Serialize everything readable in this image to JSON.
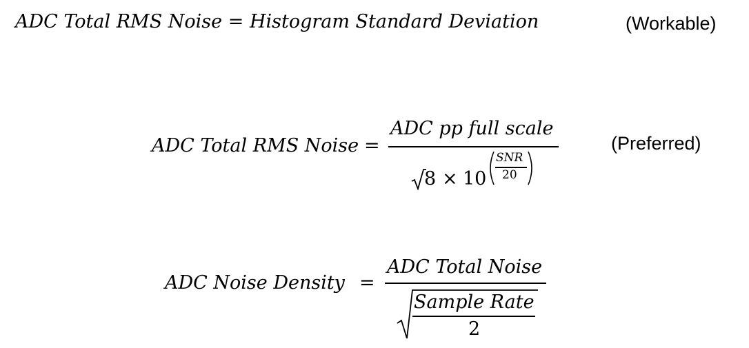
{
  "equations": {
    "workable": {
      "lhs": "ADC Total RMS Noise",
      "equals": "=",
      "rhs": "Histogram Standard Deviation",
      "note": "(Workable)"
    },
    "preferred": {
      "lhs": "ADC Total RMS Noise",
      "equals": "=",
      "numerator": "ADC pp full scale",
      "sqrt_arg": "8",
      "times": "×",
      "base": "10",
      "exp_numerator": "SNR",
      "exp_denominator": "20",
      "note": "(Preferred)"
    },
    "density": {
      "lhs": "ADC Noise Density",
      "equals": "=",
      "numerator": "ADC Total Noise",
      "inner_numerator": "Sample Rate",
      "inner_denominator": "2"
    }
  }
}
